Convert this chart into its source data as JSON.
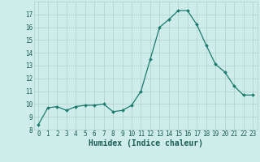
{
  "x": [
    0,
    1,
    2,
    3,
    4,
    5,
    6,
    7,
    8,
    9,
    10,
    11,
    12,
    13,
    14,
    15,
    16,
    17,
    18,
    19,
    20,
    21,
    22,
    23
  ],
  "y": [
    8.4,
    9.7,
    9.8,
    9.5,
    9.8,
    9.9,
    9.9,
    10.0,
    9.4,
    9.5,
    9.9,
    11.0,
    13.5,
    16.0,
    16.6,
    17.3,
    17.3,
    16.2,
    14.6,
    13.1,
    12.5,
    11.4,
    10.7,
    10.7
  ],
  "line_color": "#1a7a6e",
  "marker": "D",
  "marker_size": 2.0,
  "bg_color": "#ceecea",
  "grid_color_major": "#b0ceca",
  "grid_color_minor": "#daf0ee",
  "xlabel": "Humidex (Indice chaleur)",
  "ylim": [
    8,
    18
  ],
  "xlim": [
    -0.5,
    23.5
  ],
  "yticks": [
    8,
    9,
    10,
    11,
    12,
    13,
    14,
    15,
    16,
    17
  ],
  "xticks": [
    0,
    1,
    2,
    3,
    4,
    5,
    6,
    7,
    8,
    9,
    10,
    11,
    12,
    13,
    14,
    15,
    16,
    17,
    18,
    19,
    20,
    21,
    22,
    23
  ],
  "tick_fontsize": 5.5,
  "xlabel_fontsize": 7.0,
  "label_color": "#1a5c55"
}
